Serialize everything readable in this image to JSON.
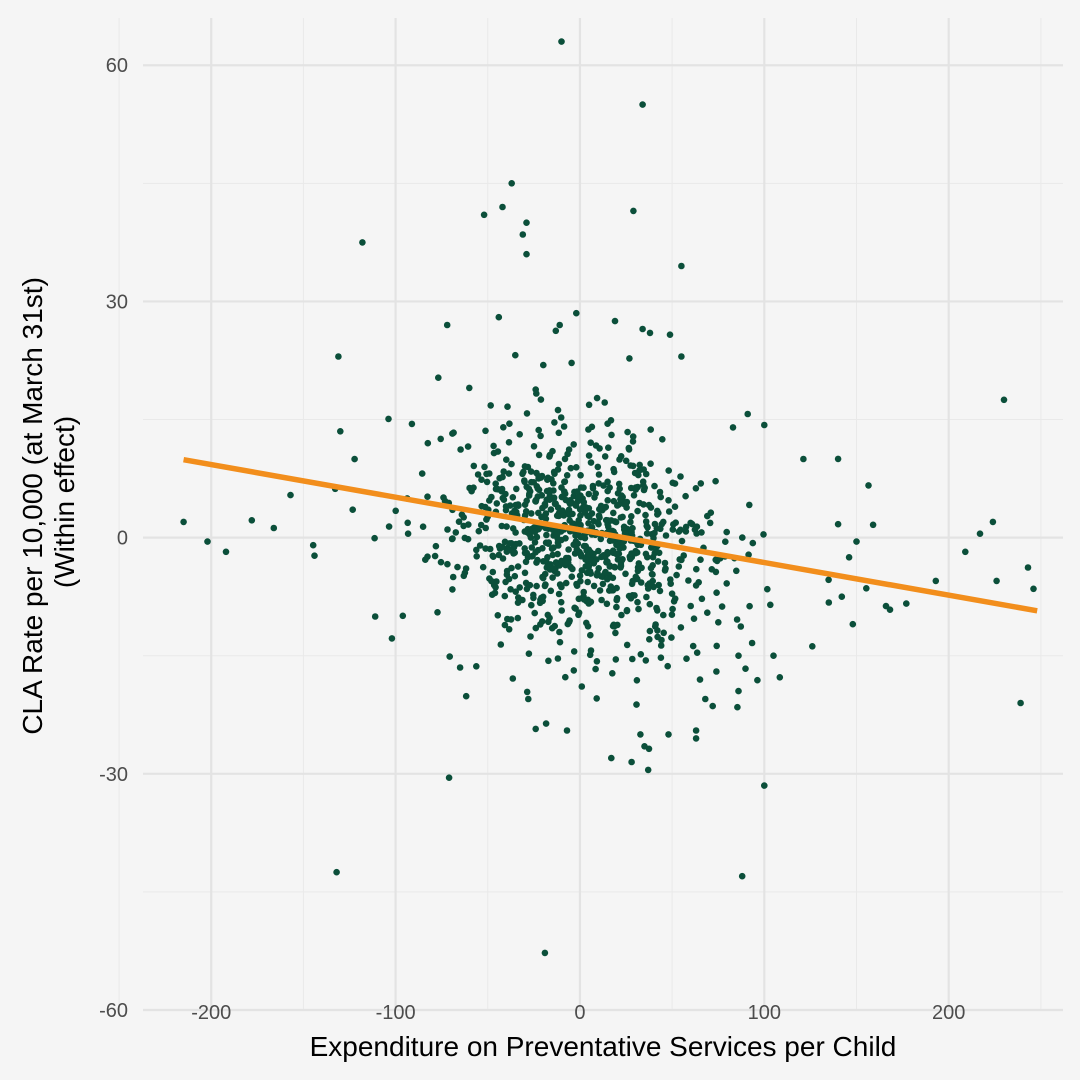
{
  "chart_data": {
    "type": "scatter",
    "title": "",
    "xlabel": "Expenditure on Preventative Services per Child",
    "ylabel_lines": [
      "CLA Rate per 10,000 (at March 31st)",
      "(Within effect)"
    ],
    "xlim": [
      -237,
      262
    ],
    "ylim": [
      -60,
      66
    ],
    "x_ticks": [
      -200,
      -100,
      0,
      100,
      200
    ],
    "x_tick_labels": [
      "-200",
      "-100",
      "0",
      "100",
      "200"
    ],
    "y_ticks": [
      -60,
      -30,
      0,
      30,
      60
    ],
    "y_tick_labels": [
      "-60",
      "-30",
      "0",
      "30",
      "60"
    ],
    "grid": true,
    "point_color": "#0b4f3a",
    "fit_line_color": "#f28e1c",
    "fit_line": {
      "x": [
        -215,
        248
      ],
      "y": [
        9.9,
        -9.3
      ]
    },
    "highlighted_points": [
      [
        -10,
        63
      ],
      [
        34,
        55
      ],
      [
        -37,
        45
      ],
      [
        -42,
        42
      ],
      [
        -52,
        41
      ],
      [
        29,
        41.5
      ],
      [
        -29,
        40
      ],
      [
        -31,
        38.5
      ],
      [
        -118,
        37.5
      ],
      [
        -29,
        36
      ],
      [
        55,
        34.5
      ],
      [
        -72,
        27
      ],
      [
        -44,
        28
      ],
      [
        -2,
        28.5
      ],
      [
        19,
        27.5
      ],
      [
        -11,
        27
      ],
      [
        34,
        26.5
      ],
      [
        38,
        26
      ],
      [
        -131,
        23
      ],
      [
        55,
        23
      ],
      [
        -130,
        13.5
      ],
      [
        230,
        17.5
      ],
      [
        140,
        10
      ],
      [
        -215,
        2
      ],
      [
        -202,
        -0.5
      ],
      [
        -192,
        -1.8
      ],
      [
        -178,
        2.2
      ],
      [
        -157,
        5.4
      ],
      [
        -144,
        -2.3
      ],
      [
        -102,
        -12.8
      ],
      [
        -65,
        -16.5
      ],
      [
        -28,
        -20.5
      ],
      [
        -24,
        -24.3
      ],
      [
        -7,
        -24.5
      ],
      [
        17,
        -28
      ],
      [
        35,
        -26.5
      ],
      [
        37,
        -29.5
      ],
      [
        28,
        -28.5
      ],
      [
        48,
        -25
      ],
      [
        63,
        -24.5
      ],
      [
        63,
        -25.5
      ],
      [
        -71,
        -30.5
      ],
      [
        100,
        -31.5
      ],
      [
        -132,
        -42.5
      ],
      [
        88,
        -43
      ],
      [
        239,
        -21
      ],
      [
        246,
        -6.5
      ],
      [
        243,
        -3.8
      ],
      [
        226,
        -5.5
      ],
      [
        224,
        2
      ],
      [
        217,
        0.5
      ],
      [
        209,
        -1.8
      ],
      [
        193,
        -5.5
      ],
      [
        166,
        -8.7
      ],
      [
        150,
        -0.5
      ],
      [
        146,
        -2.5
      ],
      [
        140,
        1.7
      ],
      [
        142,
        -7.5
      ],
      [
        148,
        -11
      ],
      [
        126,
        -13.8
      ],
      [
        100,
        14.3
      ],
      [
        91,
        15.7
      ],
      [
        83,
        14
      ],
      [
        74,
        -17
      ],
      [
        68,
        -20.5
      ],
      [
        72,
        -21.4
      ],
      [
        86,
        -19.5
      ],
      [
        105,
        -15
      ],
      [
        86,
        -15
      ]
    ],
    "cloud": {
      "seed": 20240,
      "count": 900,
      "x_center": 0,
      "x_sd": 33,
      "y_center": 0,
      "y_sd": 6.2,
      "slope": -0.042
    }
  }
}
